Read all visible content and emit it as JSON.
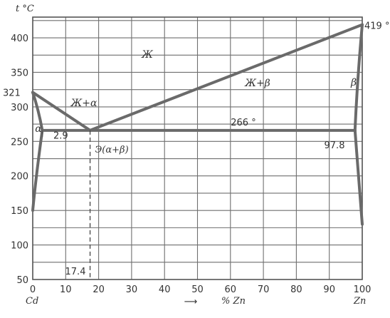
{
  "axis": {
    "y_unit": "t °C",
    "y_ticks": [
      "50",
      "100",
      "150",
      "200",
      "250",
      "300",
      "350",
      "400"
    ],
    "x_ticks": [
      "0",
      "10",
      "20",
      "30",
      "40",
      "50",
      "60",
      "70",
      "80",
      "90",
      "100"
    ],
    "x_left_element": "Cd",
    "x_right_element": "Zn",
    "x_label": "% Zn",
    "arrow": "⟶"
  },
  "annotations": {
    "cd_melting": "321",
    "zn_melting": "419 °",
    "eutectic_temp": "266 °",
    "alpha_solubility": "2.9",
    "beta_solubility": "97.8",
    "eutectic_composition": "17.4",
    "eutectic_label": "Э(α+β)"
  },
  "regions": {
    "liquid": "Ж",
    "liquid_alpha": "Ж+α",
    "liquid_beta": "Ж+β",
    "alpha": "α",
    "beta": "β"
  },
  "chart_data": {
    "type": "phase-diagram",
    "x_range": [
      0,
      100
    ],
    "y_range": [
      50,
      430
    ],
    "liquidus": [
      [
        0,
        321
      ],
      [
        17.4,
        266
      ],
      [
        100,
        419
      ]
    ],
    "eutectic_line": {
      "t": 266,
      "x_from": 2.9,
      "x_to": 97.8
    },
    "alpha_solvus": [
      [
        2.9,
        266
      ],
      [
        0,
        150
      ]
    ],
    "beta_solvus": [
      [
        97.8,
        266
      ],
      [
        100,
        130
      ]
    ],
    "eutectic_point": [
      17.4,
      266
    ]
  },
  "colors": {
    "line": "#6a6a6a",
    "grid": "#6f6f6f",
    "text": "#333333"
  }
}
